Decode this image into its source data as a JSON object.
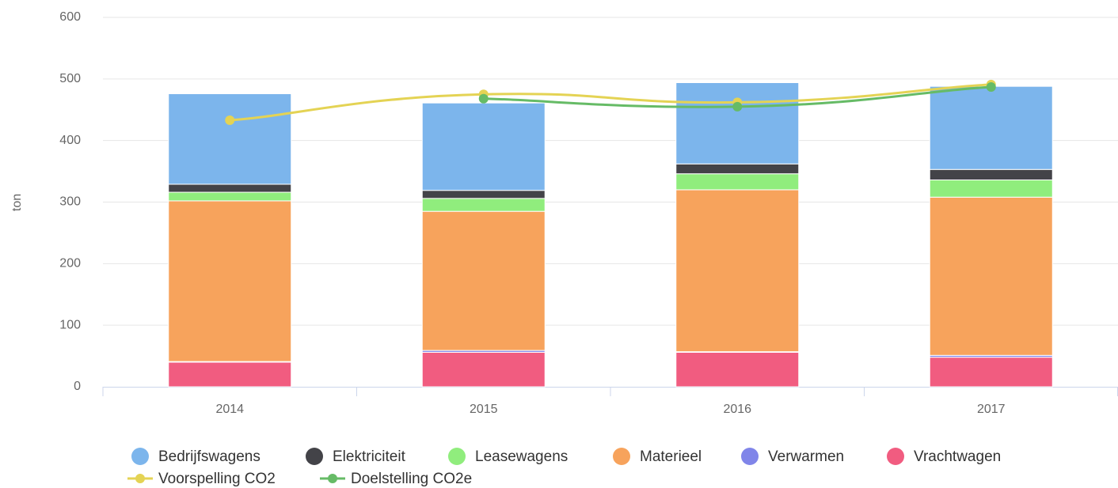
{
  "chart_data": {
    "type": "bar",
    "stacked": true,
    "y_label": "ton",
    "categories": [
      "2014",
      "2015",
      "2016",
      "2017"
    ],
    "ylim": [
      0,
      600
    ],
    "yticks": [
      0,
      100,
      200,
      300,
      400,
      500,
      600
    ],
    "grid": true,
    "legend": "bottom",
    "series": [
      {
        "name": "Bedrijfswagens",
        "color": "#7cb5ec",
        "values": [
          147,
          142,
          132,
          135
        ]
      },
      {
        "name": "Elektriciteit",
        "color": "#434348",
        "values": [
          13,
          13,
          16,
          17
        ]
      },
      {
        "name": "Leasewagens",
        "color": "#90ed7d",
        "values": [
          14,
          21,
          26,
          28
        ]
      },
      {
        "name": "Materieel",
        "color": "#f7a35c",
        "values": [
          261,
          226,
          263,
          257
        ]
      },
      {
        "name": "Verwarmen",
        "color": "#8085e9",
        "values": [
          1,
          3,
          1,
          3
        ]
      },
      {
        "name": "Vrachtwagen",
        "color": "#f15c80",
        "values": [
          40,
          56,
          56,
          48
        ]
      },
      {
        "name": "Voorspelling CO2",
        "color": "#e4d354",
        "type": "spline",
        "values": [
          433,
          475,
          462,
          491
        ]
      },
      {
        "name": "Doelstelling CO2e",
        "color": "#66bb66",
        "type": "spline",
        "values": [
          null,
          468,
          455,
          487
        ]
      }
    ]
  }
}
